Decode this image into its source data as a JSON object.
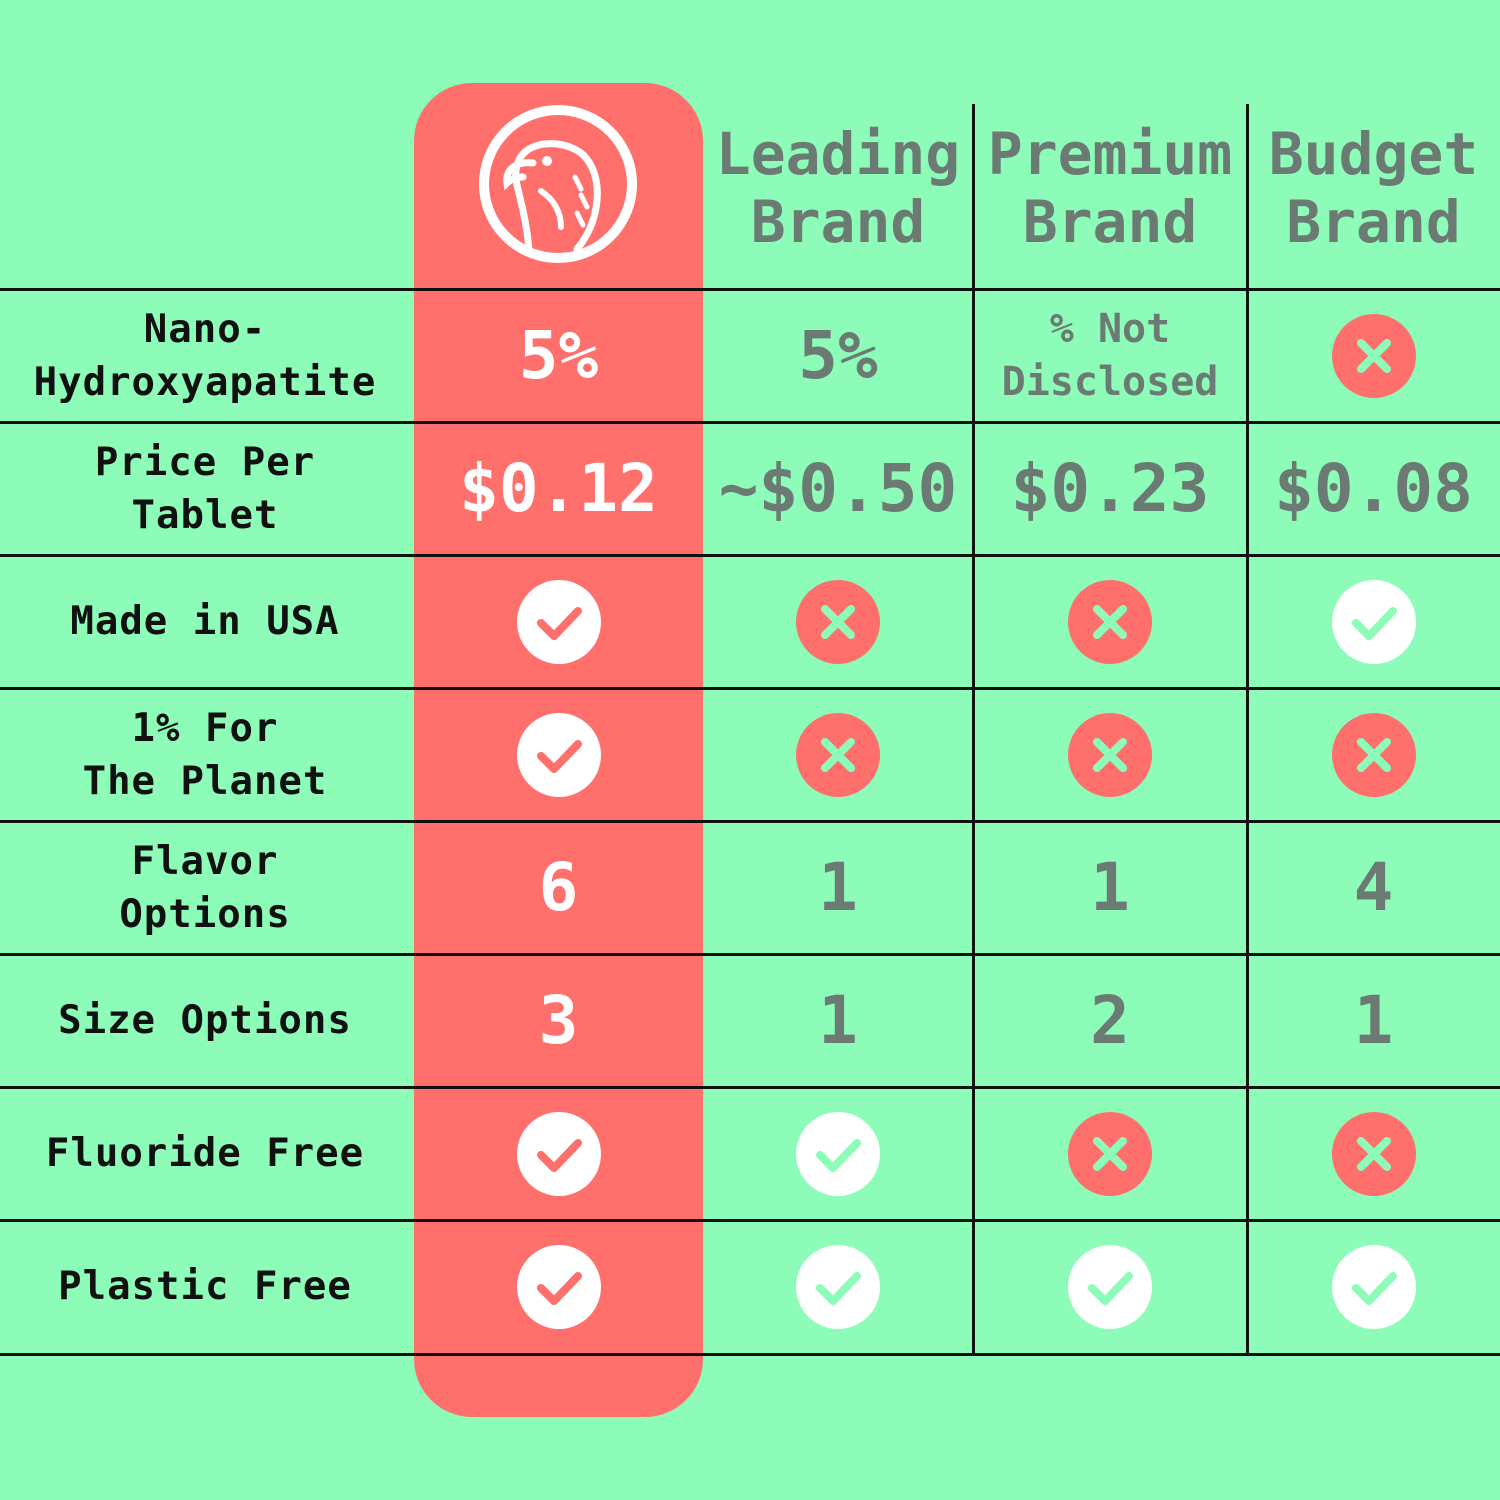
{
  "colors": {
    "background": "#8dfcb8",
    "own_brand": "#ff6f6c",
    "competitor_text": "#6b7b73",
    "check_circle": "#ffffff",
    "cross_circle": "#ff6f6c",
    "grid_lines": "#111111"
  },
  "header": {
    "logo_icon": "parrot-logo-icon",
    "brands": [
      {
        "label": "Leading\nBrand"
      },
      {
        "label": "Premium\nBrand"
      },
      {
        "label": "Budget\nBrand"
      }
    ]
  },
  "rows": [
    {
      "label": "Nano-\nHydroxyapatite",
      "cells": [
        {
          "kind": "text",
          "value": "5%"
        },
        {
          "kind": "text",
          "value": "5%"
        },
        {
          "kind": "text",
          "value": "% Not\nDisclosed"
        },
        {
          "kind": "cross",
          "icon": "cross-icon"
        }
      ]
    },
    {
      "label": "Price Per\nTablet",
      "cells": [
        {
          "kind": "text",
          "value": "$0.12"
        },
        {
          "kind": "text",
          "value": "~$0.50"
        },
        {
          "kind": "text",
          "value": "$0.23"
        },
        {
          "kind": "text",
          "value": "$0.08"
        }
      ]
    },
    {
      "label": "Made in USA",
      "cells": [
        {
          "kind": "check",
          "icon": "check-icon"
        },
        {
          "kind": "cross",
          "icon": "cross-icon"
        },
        {
          "kind": "cross",
          "icon": "cross-icon"
        },
        {
          "kind": "check",
          "icon": "check-icon"
        }
      ]
    },
    {
      "label": "1% For\nThe Planet",
      "cells": [
        {
          "kind": "check",
          "icon": "check-icon"
        },
        {
          "kind": "cross",
          "icon": "cross-icon"
        },
        {
          "kind": "cross",
          "icon": "cross-icon"
        },
        {
          "kind": "cross",
          "icon": "cross-icon"
        }
      ]
    },
    {
      "label": "Flavor\nOptions",
      "cells": [
        {
          "kind": "text",
          "value": "6"
        },
        {
          "kind": "text",
          "value": "1"
        },
        {
          "kind": "text",
          "value": "1"
        },
        {
          "kind": "text",
          "value": "4"
        }
      ]
    },
    {
      "label": "Size Options",
      "cells": [
        {
          "kind": "text",
          "value": "3"
        },
        {
          "kind": "text",
          "value": "1"
        },
        {
          "kind": "text",
          "value": "2"
        },
        {
          "kind": "text",
          "value": "1"
        }
      ]
    },
    {
      "label": "Fluoride Free",
      "cells": [
        {
          "kind": "check",
          "icon": "check-icon"
        },
        {
          "kind": "check",
          "icon": "check-icon"
        },
        {
          "kind": "cross",
          "icon": "cross-icon"
        },
        {
          "kind": "cross",
          "icon": "cross-icon"
        }
      ]
    },
    {
      "label": "Plastic Free",
      "cells": [
        {
          "kind": "check",
          "icon": "check-icon"
        },
        {
          "kind": "check",
          "icon": "check-icon"
        },
        {
          "kind": "check",
          "icon": "check-icon"
        },
        {
          "kind": "check",
          "icon": "check-icon"
        }
      ]
    }
  ]
}
